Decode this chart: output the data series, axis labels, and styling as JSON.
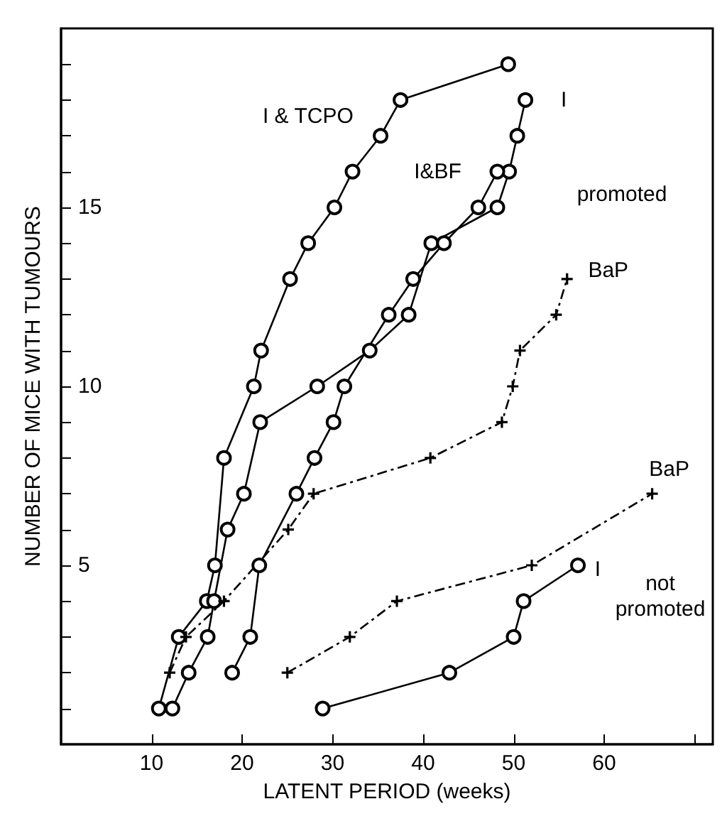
{
  "chart_data": {
    "type": "line",
    "xlabel": "LATENT PERIOD (weeks)",
    "ylabel": "NUMBER OF MICE WITH TUMOURS",
    "xlim": [
      0,
      72
    ],
    "ylim": [
      0,
      20
    ],
    "xticks": [
      10,
      20,
      30,
      40,
      50,
      60,
      {
        "value": 70,
        "label": null
      }
    ],
    "yticks": [
      {
        "value": 1,
        "label": null
      },
      {
        "value": 2,
        "label": null
      },
      {
        "value": 3,
        "label": null
      },
      {
        "value": 4,
        "label": null
      },
      5,
      {
        "value": 6,
        "label": null
      },
      {
        "value": 7,
        "label": null
      },
      {
        "value": 8,
        "label": null
      },
      {
        "value": 9,
        "label": null
      },
      10,
      {
        "value": 11,
        "label": null
      },
      {
        "value": 12,
        "label": null
      },
      {
        "value": 13,
        "label": null
      },
      {
        "value": 14,
        "label": null
      },
      15,
      {
        "value": 16,
        "label": null
      },
      {
        "value": 17,
        "label": null
      },
      {
        "value": 18,
        "label": null
      },
      {
        "value": 19,
        "label": null
      }
    ],
    "grid": false,
    "legend": false,
    "marker": "circle",
    "line_style": "solid",
    "series": [
      {
        "name": "I & TCPO",
        "color": "#000000",
        "x": [
          10.8,
          13,
          16.1,
          17,
          18,
          21.3,
          22.1,
          25.3,
          27.3,
          30.2,
          32.2,
          35.3,
          37.5,
          49.4
        ],
        "values": [
          1,
          3,
          4,
          5,
          8,
          10,
          11,
          13,
          14,
          15,
          16,
          17,
          18,
          19
        ]
      },
      {
        "name": "I",
        "color": "#000000",
        "x": [
          12.3,
          14.1,
          16.2,
          16.9,
          18.4,
          20.2,
          22,
          28.3,
          34.1,
          38.4,
          40.9,
          48.2,
          49.5,
          50.4,
          51.3
        ],
        "values": [
          1,
          2,
          3,
          4,
          6,
          7,
          9,
          10,
          11,
          12,
          14,
          15,
          16,
          17,
          18
        ]
      },
      {
        "name": "I&BF",
        "color": "#000000",
        "x": [
          18.9,
          20.9,
          21.9,
          26,
          28,
          30.1,
          31.3,
          36.2,
          38.9,
          42.3,
          46.1,
          48.2
        ],
        "values": [
          2,
          3,
          5,
          7,
          8,
          9,
          10,
          12,
          13,
          14,
          15,
          16
        ]
      },
      {
        "name": "BaP",
        "color": "#000000",
        "marker": "cross",
        "line_style": "dashed",
        "x": [
          12,
          13.8,
          18,
          25.1,
          27.9,
          40.8,
          48.7,
          49.9,
          50.7,
          54.7,
          55.9
        ],
        "values": [
          2,
          3,
          4,
          6,
          7,
          8,
          9,
          10,
          11,
          12,
          13
        ]
      },
      {
        "name": "BaP",
        "color": "#000000",
        "marker": "cross",
        "line_style": "dashed",
        "x": [
          25,
          31.9,
          37.1,
          52,
          65.3
        ],
        "values": [
          2,
          3,
          4,
          5,
          7
        ]
      },
      {
        "name": "I",
        "color": "#000000",
        "x": [
          28.9,
          42.9,
          50,
          51.1,
          57.1
        ],
        "values": [
          1,
          2,
          3,
          4,
          5
        ]
      }
    ],
    "annotations": [
      "promoted",
      "not promoted"
    ]
  }
}
